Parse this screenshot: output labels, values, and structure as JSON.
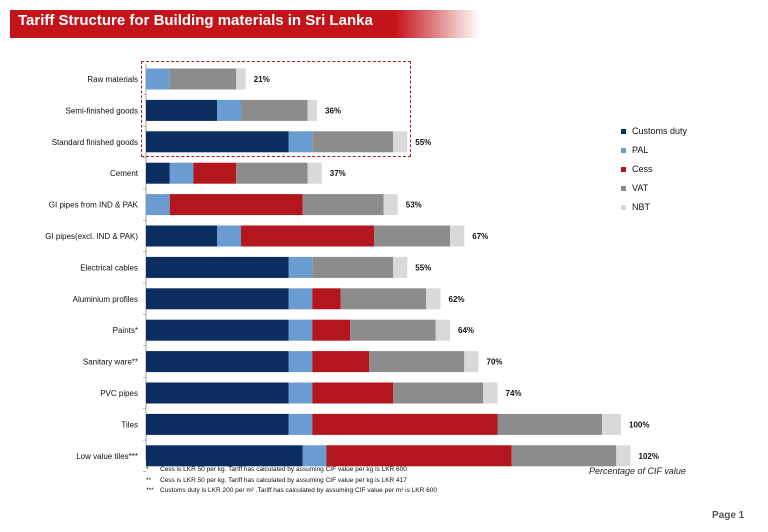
{
  "header": {
    "title": "Tariff Structure for Building materials in Sri Lanka"
  },
  "chart_data": {
    "type": "bar",
    "orientation": "horizontal",
    "stacked": true,
    "categories": [
      "Raw materials",
      "Semi-finished goods",
      "Standard finished goods",
      "Cement",
      "GI pipes from IND & PAK",
      "GI pipes(excl. IND & PAK)",
      "Electrical cables",
      "Aluminium profiles",
      "Paints*",
      "Sanitary ware**",
      "PVC pipes",
      "Tiles",
      "Low value tiles***"
    ],
    "series": [
      {
        "name": "Customs duty",
        "color": "#0b2d5f",
        "values": [
          0,
          15,
          30,
          5,
          0,
          15,
          30,
          30,
          30,
          30,
          30,
          30,
          33
        ]
      },
      {
        "name": "PAL",
        "color": "#6a9bd1",
        "values": [
          5,
          5,
          5,
          5,
          5,
          5,
          5,
          5,
          5,
          5,
          5,
          5,
          5
        ]
      },
      {
        "name": "Cess",
        "color": "#b3161c",
        "values": [
          0,
          0,
          0,
          9,
          28,
          28,
          0,
          6,
          8,
          12,
          17,
          39,
          39
        ]
      },
      {
        "name": "VAT",
        "color": "#8c8c8c",
        "values": [
          14,
          14,
          17,
          15,
          17,
          16,
          17,
          18,
          18,
          20,
          19,
          22,
          22
        ]
      },
      {
        "name": "NBT",
        "color": "#d9d9d9",
        "values": [
          2,
          2,
          3,
          3,
          3,
          3,
          3,
          3,
          3,
          3,
          3,
          4,
          3
        ]
      }
    ],
    "totals": [
      "21%",
      "36%",
      "55%",
      "37%",
      "53%",
      "67%",
      "55%",
      "62%",
      "64%",
      "70%",
      "74%",
      "100%",
      "102%"
    ],
    "xlim": [
      0,
      105
    ],
    "legend_position": "right",
    "grid": false,
    "note": "Percentage of CIF value"
  },
  "footnotes": [
    {
      "mark": "*",
      "text": "Cess is LKR 50 per kg. Tariff has calculated by assuming CIF value per kg is LKR 600"
    },
    {
      "mark": "**",
      "text": "Cess is LKR 50 per kg. Tariff has calculated by assuming CIF value per kg is LKR 417"
    },
    {
      "mark": "***",
      "text": "Customs duty is LKR 200 per m² .Tariff has calculated by assuming CIF value per m² is LKR 600"
    }
  ],
  "page": {
    "label": "Page 1"
  }
}
